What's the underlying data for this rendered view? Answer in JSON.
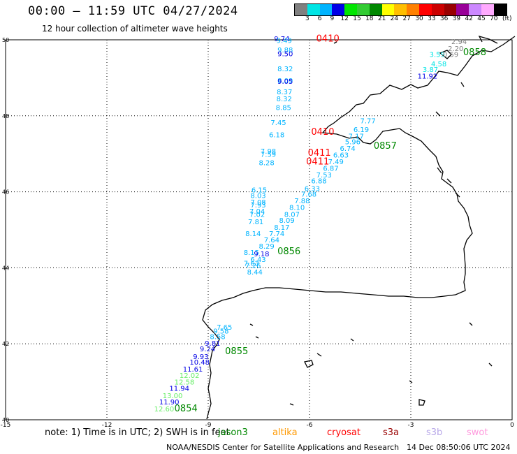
{
  "title": "00:00 — 11:59 UTC 04/27/2024",
  "subtitle": "12 hour collection of altimeter wave heights",
  "legend": {
    "colors": [
      "#808080",
      "#00e5e5",
      "#00b4ff",
      "#0000e6",
      "#00e600",
      "#33cc33",
      "#008800",
      "#ffff00",
      "#ffbf00",
      "#ff8000",
      "#ff0000",
      "#cc0000",
      "#990000",
      "#990099",
      "#cc88ff",
      "#ffaaff",
      "#000000"
    ],
    "labels": [
      "3",
      "6",
      "9",
      "12",
      "15",
      "18",
      "21",
      "24",
      "27",
      "30",
      "33",
      "36",
      "39",
      "42",
      "45",
      "70"
    ],
    "unit": "(ft)"
  },
  "axes": {
    "lon_ticks": [
      "-15",
      "-12",
      "-9",
      "-6",
      "-3",
      "0"
    ],
    "lat_ticks": [
      "50",
      "48",
      "46",
      "44",
      "42",
      "40"
    ]
  },
  "note": "note:  1) Time is in UTC;  2) SWH is in feet",
  "satellites": [
    {
      "name": "jason3",
      "color": "#008800"
    },
    {
      "name": "altika",
      "color": "#ff9900"
    },
    {
      "name": "cryosat",
      "color": "#ff0000"
    },
    {
      "name": "s3a",
      "color": "#990000"
    },
    {
      "name": "s3b",
      "color": "#b8a8e8"
    },
    {
      "name": "swot",
      "color": "#ff99dd"
    }
  ],
  "footer_left": "NOAA/NESDIS Center for Satellite Applications and Research",
  "footer_right": "14 Dec 08:50:06 UTC 2024",
  "tracks": [
    {
      "name": "cryosat-track",
      "time": "0410",
      "time_at": [
        -5.8,
        49.95
      ],
      "time_color": "#ff0000",
      "points": [
        {
          "lat": 49.96,
          "lon": -7.05,
          "v": "9.74",
          "c": "#0000e6"
        },
        {
          "lat": 49.92,
          "lon": -6.98,
          "v": "9.49",
          "c": "#00b4ff"
        },
        {
          "lat": 49.67,
          "lon": -6.95,
          "v": "9.88",
          "c": "#00b4ff"
        },
        {
          "lat": 49.57,
          "lon": -6.95,
          "v": "9.50",
          "c": "#0000e6"
        },
        {
          "lat": 49.17,
          "lon": -6.95,
          "v": "8.32",
          "c": "#00b4ff"
        },
        {
          "lat": 48.86,
          "lon": -6.95,
          "v": "8.09",
          "c": "#00b4ff"
        },
        {
          "lat": 48.84,
          "lon": -6.95,
          "v": "9.05",
          "c": "#0000e6"
        },
        {
          "lat": 48.57,
          "lon": -6.97,
          "v": "8.37",
          "c": "#00b4ff"
        },
        {
          "lat": 48.38,
          "lon": -6.98,
          "v": "8.32",
          "c": "#00b4ff"
        },
        {
          "lat": 48.15,
          "lon": -7.0,
          "v": "8.85",
          "c": "#00b4ff"
        }
      ]
    },
    {
      "name": "cryosat-track-2",
      "time": "0410",
      "time_at": [
        -5.95,
        47.5
      ],
      "time_color": "#ff0000",
      "points": [
        {
          "lat": 47.76,
          "lon": -7.15,
          "v": "7.45",
          "c": "#00b4ff"
        },
        {
          "lat": 47.44,
          "lon": -7.2,
          "v": "6.18",
          "c": "#00b4ff"
        }
      ]
    },
    {
      "name": "cryosat-track-3",
      "time": "0411",
      "time_at": [
        -6.05,
        46.95
      ],
      "time_color": "#ff0000",
      "points": [
        {
          "lat": 47.0,
          "lon": -7.45,
          "v": "7.98",
          "c": "#00b4ff"
        },
        {
          "lat": 46.92,
          "lon": -7.45,
          "v": "7.59",
          "c": "#00b4ff"
        }
      ]
    },
    {
      "name": "cryosat-track-4",
      "time": "0411",
      "time_at": [
        -6.1,
        46.72
      ],
      "time_color": "#ff0000",
      "points": [
        {
          "lat": 46.7,
          "lon": -7.5,
          "v": "8.28",
          "c": "#00b4ff"
        }
      ]
    },
    {
      "name": "altika-track",
      "time": "",
      "time_at": [
        0,
        0
      ],
      "time_color": "#ff9900",
      "points": [
        {
          "lat": 45.98,
          "lon": -7.72,
          "v": "6.15",
          "c": "#00b4ff"
        },
        {
          "lat": 45.84,
          "lon": -7.75,
          "v": "8.03",
          "c": "#00b4ff"
        },
        {
          "lat": 45.66,
          "lon": -7.75,
          "v": "7.08",
          "c": "#00b4ff"
        },
        {
          "lat": 45.59,
          "lon": -7.75,
          "v": "7.93",
          "c": "#00b4ff"
        },
        {
          "lat": 45.42,
          "lon": -7.78,
          "v": "7.04",
          "c": "#00b4ff"
        },
        {
          "lat": 45.34,
          "lon": -7.78,
          "v": "7.02",
          "c": "#00b4ff"
        },
        {
          "lat": 45.15,
          "lon": -7.82,
          "v": "7.81",
          "c": "#00b4ff"
        },
        {
          "lat": 44.83,
          "lon": -7.9,
          "v": "8.14",
          "c": "#00b4ff"
        },
        {
          "lat": 44.34,
          "lon": -7.95,
          "v": "8.15",
          "c": "#00b4ff"
        },
        {
          "lat": 44.05,
          "lon": -7.95,
          "v": "7.63",
          "c": "#00b4ff"
        },
        {
          "lat": 44.0,
          "lon": -7.9,
          "v": "7.26",
          "c": "#00b4ff"
        },
        {
          "lat": 43.82,
          "lon": -7.85,
          "v": "8.44",
          "c": "#00b4ff"
        }
      ]
    },
    {
      "name": "jason3-track-0857",
      "time": "0857",
      "time_at": [
        -4.1,
        47.13
      ],
      "time_color": "#008800",
      "points": [
        {
          "lat": 47.8,
          "lon": -4.5,
          "v": "7.77",
          "c": "#00b4ff"
        },
        {
          "lat": 47.57,
          "lon": -4.7,
          "v": "6.19",
          "c": "#00b4ff"
        },
        {
          "lat": 47.4,
          "lon": -4.85,
          "v": "7.17",
          "c": "#00b4ff"
        },
        {
          "lat": 47.25,
          "lon": -4.95,
          "v": "5.96",
          "c": "#00b4ff"
        },
        {
          "lat": 47.08,
          "lon": -5.1,
          "v": "6.74",
          "c": "#00b4ff"
        },
        {
          "lat": 46.9,
          "lon": -5.3,
          "v": "6.63",
          "c": "#00b4ff"
        },
        {
          "lat": 46.73,
          "lon": -5.45,
          "v": "7.49",
          "c": "#00b4ff"
        },
        {
          "lat": 46.55,
          "lon": -5.6,
          "v": "6.87",
          "c": "#00b4ff"
        },
        {
          "lat": 46.38,
          "lon": -5.8,
          "v": "7.53",
          "c": "#00b4ff"
        },
        {
          "lat": 46.22,
          "lon": -5.95,
          "v": "6.88",
          "c": "#00b4ff"
        },
        {
          "lat": 46.02,
          "lon": -6.15,
          "v": "6.33",
          "c": "#00b4ff"
        },
        {
          "lat": 45.87,
          "lon": -6.25,
          "v": "7.68",
          "c": "#00b4ff"
        },
        {
          "lat": 45.7,
          "lon": -6.45,
          "v": "7.88",
          "c": "#00b4ff"
        },
        {
          "lat": 45.52,
          "lon": -6.6,
          "v": "8.10",
          "c": "#00b4ff"
        },
        {
          "lat": 45.34,
          "lon": -6.75,
          "v": "8.07",
          "c": "#00b4ff"
        },
        {
          "lat": 45.18,
          "lon": -6.9,
          "v": "8.09",
          "c": "#00b4ff"
        },
        {
          "lat": 45.0,
          "lon": -7.05,
          "v": "8.17",
          "c": "#00b4ff"
        },
        {
          "lat": 44.83,
          "lon": -7.2,
          "v": "7.74",
          "c": "#00b4ff"
        },
        {
          "lat": 44.67,
          "lon": -7.35,
          "v": "7.64",
          "c": "#00b4ff"
        },
        {
          "lat": 44.5,
          "lon": -7.5,
          "v": "8.29",
          "c": "#00b4ff"
        },
        {
          "lat": 44.3,
          "lon": -7.65,
          "v": "9.18",
          "c": "#0000e6"
        },
        {
          "lat": 44.15,
          "lon": -7.75,
          "v": "6.43",
          "c": "#00b4ff"
        }
      ]
    },
    {
      "name": "jason3-track-0856",
      "time": "0856",
      "time_at": [
        -6.95,
        44.36
      ],
      "time_color": "#008800",
      "points": []
    },
    {
      "name": "jason3-track-0858",
      "time": "0858",
      "time_at": [
        -1.45,
        49.6
      ],
      "time_color": "#008800",
      "points": [
        {
          "lat": 49.89,
          "lon": -1.8,
          "v": "2.94",
          "c": "#808080"
        },
        {
          "lat": 49.71,
          "lon": -1.9,
          "v": "2.20",
          "c": "#808080"
        },
        {
          "lat": 49.55,
          "lon": -2.45,
          "v": "3.59",
          "c": "#00e5e5"
        },
        {
          "lat": 49.55,
          "lon": -2.05,
          "v": "0.59",
          "c": "#808080"
        },
        {
          "lat": 49.3,
          "lon": -2.4,
          "v": "4.58",
          "c": "#00e5e5"
        },
        {
          "lat": 49.15,
          "lon": -2.65,
          "v": "3.87",
          "c": "#00e5e5"
        },
        {
          "lat": 48.98,
          "lon": -2.8,
          "v": "11.92",
          "c": "#0000e6"
        }
      ]
    },
    {
      "name": "jason3-track-0855",
      "time": "0855",
      "time_at": [
        -8.5,
        41.73
      ],
      "time_color": "#008800",
      "points": [
        {
          "lat": 42.37,
          "lon": -8.75,
          "v": "7.65",
          "c": "#00b4ff"
        },
        {
          "lat": 42.27,
          "lon": -8.85,
          "v": "9.58",
          "c": "#00b4ff"
        },
        {
          "lat": 42.12,
          "lon": -8.95,
          "v": "8.58",
          "c": "#00b4ff"
        },
        {
          "lat": 41.95,
          "lon": -9.1,
          "v": "9.81",
          "c": "#0000e6"
        },
        {
          "lat": 41.8,
          "lon": -9.25,
          "v": "9.24",
          "c": "#0000e6"
        },
        {
          "lat": 41.6,
          "lon": -9.45,
          "v": "9.93",
          "c": "#0000e6"
        },
        {
          "lat": 41.45,
          "lon": -9.55,
          "v": "10.48",
          "c": "#0000e6"
        },
        {
          "lat": 41.27,
          "lon": -9.75,
          "v": "11.61",
          "c": "#0000e6"
        },
        {
          "lat": 41.1,
          "lon": -9.85,
          "v": "12.02",
          "c": "#66ee66"
        },
        {
          "lat": 40.93,
          "lon": -10.0,
          "v": "12.58",
          "c": "#66ee66"
        },
        {
          "lat": 40.76,
          "lon": -10.15,
          "v": "11.94",
          "c": "#0000e6"
        },
        {
          "lat": 40.57,
          "lon": -10.35,
          "v": "13.00",
          "c": "#66ee66"
        },
        {
          "lat": 40.4,
          "lon": -10.45,
          "v": "11.90",
          "c": "#0000e6"
        },
        {
          "lat": 40.22,
          "lon": -10.6,
          "v": "12.60",
          "c": "#66ee66"
        }
      ]
    },
    {
      "name": "jason3-track-0854",
      "time": "0854",
      "time_at": [
        -10.0,
        40.22
      ],
      "time_color": "#008800",
      "points": []
    }
  ]
}
